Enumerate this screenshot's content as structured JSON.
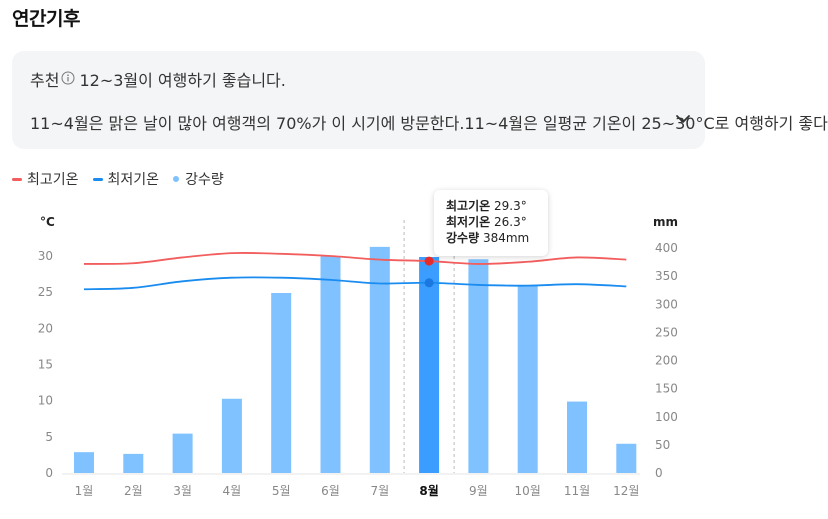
{
  "page": {
    "title": "연간기후"
  },
  "recommendation": {
    "label": "추천",
    "info_icon": "info-circle-icon",
    "period": "12~3월이 여행하기 좋습니다.",
    "description": "11~4월은 맑은 날이 많아 여행객의 70%가 이 시기에 방문한다.11~4월은 일평균 기온이 25~30°C로 여행하기 좋다",
    "expand_icon": "chevron-down-icon"
  },
  "legend": [
    {
      "label": "최고기온",
      "color": "#f25d5d",
      "shape": "line"
    },
    {
      "label": "최저기온",
      "color": "#1a8cf0",
      "shape": "line"
    },
    {
      "label": "강수량",
      "color": "#7fc1ff",
      "shape": "dot"
    }
  ],
  "tooltip": {
    "high_label": "최고기온",
    "high_value": "29.3°",
    "low_label": "최저기온",
    "low_value": "26.3°",
    "rain_label": "강수량",
    "rain_value": "384mm"
  },
  "chart_data": {
    "type": "bar",
    "categories": [
      "1월",
      "2월",
      "3월",
      "4월",
      "5월",
      "6월",
      "7월",
      "8월",
      "9월",
      "10월",
      "11월",
      "12월"
    ],
    "selected_index": 7,
    "y_left": {
      "label": "°C",
      "ylim": [
        0,
        35
      ],
      "ticks": [
        0,
        5,
        10,
        15,
        20,
        25,
        30
      ]
    },
    "y_right": {
      "label": "mm",
      "ylim": [
        0,
        450
      ],
      "ticks": [
        0,
        50,
        100,
        150,
        200,
        250,
        300,
        350,
        400
      ]
    },
    "series": [
      {
        "name": "강수량",
        "type": "bar",
        "axis": "right",
        "color": "#80c1ff",
        "selected_color": "#3b9dff",
        "values": [
          37,
          34,
          70,
          132,
          320,
          385,
          402,
          384,
          380,
          333,
          127,
          52
        ]
      },
      {
        "name": "최고기온",
        "type": "line",
        "axis": "left",
        "color": "#f25d5d",
        "values": [
          28.9,
          29.0,
          29.8,
          30.4,
          30.3,
          30.0,
          29.5,
          29.3,
          28.9,
          29.2,
          29.8,
          29.5
        ]
      },
      {
        "name": "최저기온",
        "type": "line",
        "axis": "left",
        "color": "#1a8cf0",
        "values": [
          25.4,
          25.6,
          26.5,
          27.0,
          27.0,
          26.7,
          26.2,
          26.3,
          26.0,
          25.9,
          26.1,
          25.8
        ]
      }
    ],
    "grid": false,
    "legend_position": "top-left"
  }
}
